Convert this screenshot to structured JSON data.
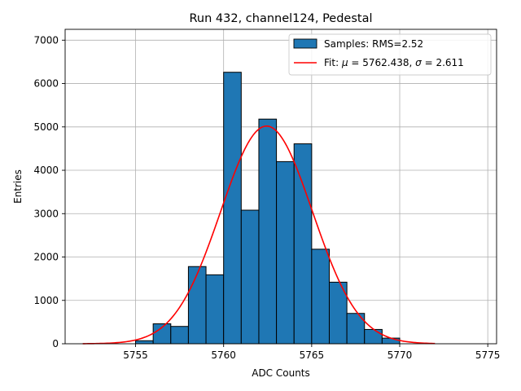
{
  "chart_data": {
    "type": "bar",
    "title": "Run 432, channel124, Pedestal",
    "xlabel": "ADC Counts",
    "ylabel": "Entries",
    "xlim": [
      5751,
      5775.5
    ],
    "ylim": [
      0,
      7250
    ],
    "xticks": [
      5755,
      5760,
      5765,
      5770,
      5775
    ],
    "yticks": [
      0,
      1000,
      2000,
      3000,
      4000,
      5000,
      6000,
      7000
    ],
    "grid": true,
    "legend_position": "top-right",
    "bar_color": "#1f77b4",
    "fit_color": "#ff0000",
    "histogram": {
      "name": "Samples: RMS=2.52",
      "bins": [
        {
          "x0": 5755,
          "x1": 5756,
          "count": 70
        },
        {
          "x0": 5756,
          "x1": 5757,
          "count": 460
        },
        {
          "x0": 5757,
          "x1": 5758,
          "count": 400
        },
        {
          "x0": 5758,
          "x1": 5759,
          "count": 1780
        },
        {
          "x0": 5759,
          "x1": 5760,
          "count": 1590
        },
        {
          "x0": 5760,
          "x1": 5761,
          "count": 6260
        },
        {
          "x0": 5761,
          "x1": 5762,
          "count": 3080
        },
        {
          "x0": 5762,
          "x1": 5763,
          "count": 5180
        },
        {
          "x0": 5763,
          "x1": 5764,
          "count": 4200
        },
        {
          "x0": 5764,
          "x1": 5765,
          "count": 4610
        },
        {
          "x0": 5765,
          "x1": 5766,
          "count": 2180
        },
        {
          "x0": 5766,
          "x1": 5767,
          "count": 1420
        },
        {
          "x0": 5767,
          "x1": 5768,
          "count": 700
        },
        {
          "x0": 5768,
          "x1": 5769,
          "count": 330
        },
        {
          "x0": 5769,
          "x1": 5770,
          "count": 130
        }
      ]
    },
    "fit": {
      "legend_prefix": "Fit: ",
      "mu_symbol": "μ",
      "mu_text": " = 5762.438, ",
      "sigma_symbol": "σ",
      "sigma_text": " = 2.611",
      "mu": 5762.438,
      "sigma": 2.611,
      "peak": 5020,
      "x_range": [
        5752,
        5772
      ]
    }
  }
}
